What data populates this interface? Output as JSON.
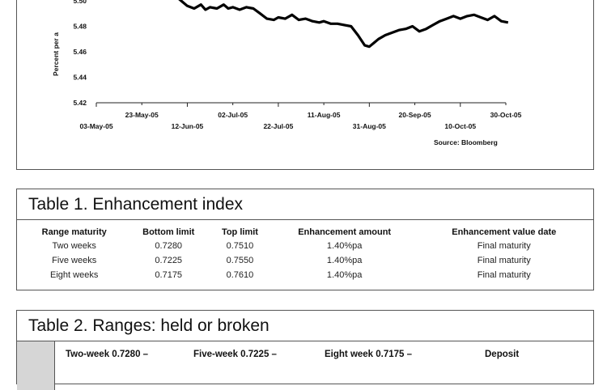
{
  "chart": {
    "y_ticks": [
      "5.50",
      "5.48",
      "5.46",
      "5.44",
      "5.42"
    ],
    "ylabel_visible": "Percent per a",
    "x_ticks_top": [
      "23-May-05",
      "02-Jul-05",
      "11-Aug-05",
      "20-Sep-05",
      "30-Oct-05"
    ],
    "x_ticks_bottom": [
      "03-May-05",
      "12-Jun-05",
      "22-Jul-05",
      "31-Aug-05",
      "10-Oct-05"
    ],
    "source": "Source: Bloomberg"
  },
  "chart_data": {
    "type": "line",
    "ylabel": "Percent per a",
    "ylim": [
      5.42,
      5.5
    ],
    "x": [
      "08-Jun-05",
      "10-Jun-05",
      "12-Jun-05",
      "15-Jun-05",
      "18-Jun-05",
      "20-Jun-05",
      "22-Jun-05",
      "25-Jun-05",
      "28-Jun-05",
      "30-Jun-05",
      "02-Jul-05",
      "05-Jul-05",
      "08-Jul-05",
      "11-Jul-05",
      "14-Jul-05",
      "17-Jul-05",
      "20-Jul-05",
      "22-Jul-05",
      "25-Jul-05",
      "28-Jul-05",
      "31-Jul-05",
      "03-Aug-05",
      "06-Aug-05",
      "09-Aug-05",
      "11-Aug-05",
      "14-Aug-05",
      "17-Aug-05",
      "20-Aug-05",
      "23-Aug-05",
      "26-Aug-05",
      "29-Aug-05",
      "31-Aug-05",
      "02-Sep-05",
      "04-Sep-05",
      "07-Sep-05",
      "10-Sep-05",
      "13-Sep-05",
      "16-Sep-05",
      "19-Sep-05",
      "22-Sep-05",
      "25-Sep-05",
      "28-Sep-05",
      "01-Oct-05",
      "04-Oct-05",
      "07-Oct-05",
      "10-Oct-05",
      "13-Oct-05",
      "16-Oct-05",
      "19-Oct-05",
      "22-Oct-05",
      "25-Oct-05",
      "28-Oct-05",
      "31-Oct-05"
    ],
    "values": [
      5.502,
      5.499,
      5.496,
      5.494,
      5.497,
      5.493,
      5.495,
      5.494,
      5.497,
      5.494,
      5.495,
      5.493,
      5.495,
      5.494,
      5.49,
      5.486,
      5.485,
      5.487,
      5.486,
      5.489,
      5.485,
      5.486,
      5.484,
      5.483,
      5.484,
      5.482,
      5.482,
      5.481,
      5.48,
      5.473,
      5.465,
      5.464,
      5.467,
      5.47,
      5.473,
      5.475,
      5.477,
      5.478,
      5.48,
      5.476,
      5.478,
      5.481,
      5.484,
      5.486,
      5.488,
      5.486,
      5.488,
      5.489,
      5.487,
      5.485,
      5.488,
      5.484,
      5.483
    ]
  },
  "table1": {
    "title": "Table 1. Enhancement index",
    "headers": [
      "Range maturity",
      "Bottom limit",
      "Top limit",
      "Enhancement amount",
      "Enhancement value date"
    ],
    "rows": [
      [
        "Two weeks",
        "0.7280",
        "0.7510",
        "1.40%pa",
        "Final maturity"
      ],
      [
        "Five weeks",
        "0.7225",
        "0.7550",
        "1.40%pa",
        "Final maturity"
      ],
      [
        "Eight weeks",
        "0.7175",
        "0.7610",
        "1.40%pa",
        "Final maturity"
      ]
    ]
  },
  "table2": {
    "title": "Table 2. Ranges: held or broken",
    "headers": [
      "Two-week 0.7280 –",
      "Five-week 0.7225 –",
      "Eight week 0.7175 –",
      "Deposit"
    ]
  }
}
